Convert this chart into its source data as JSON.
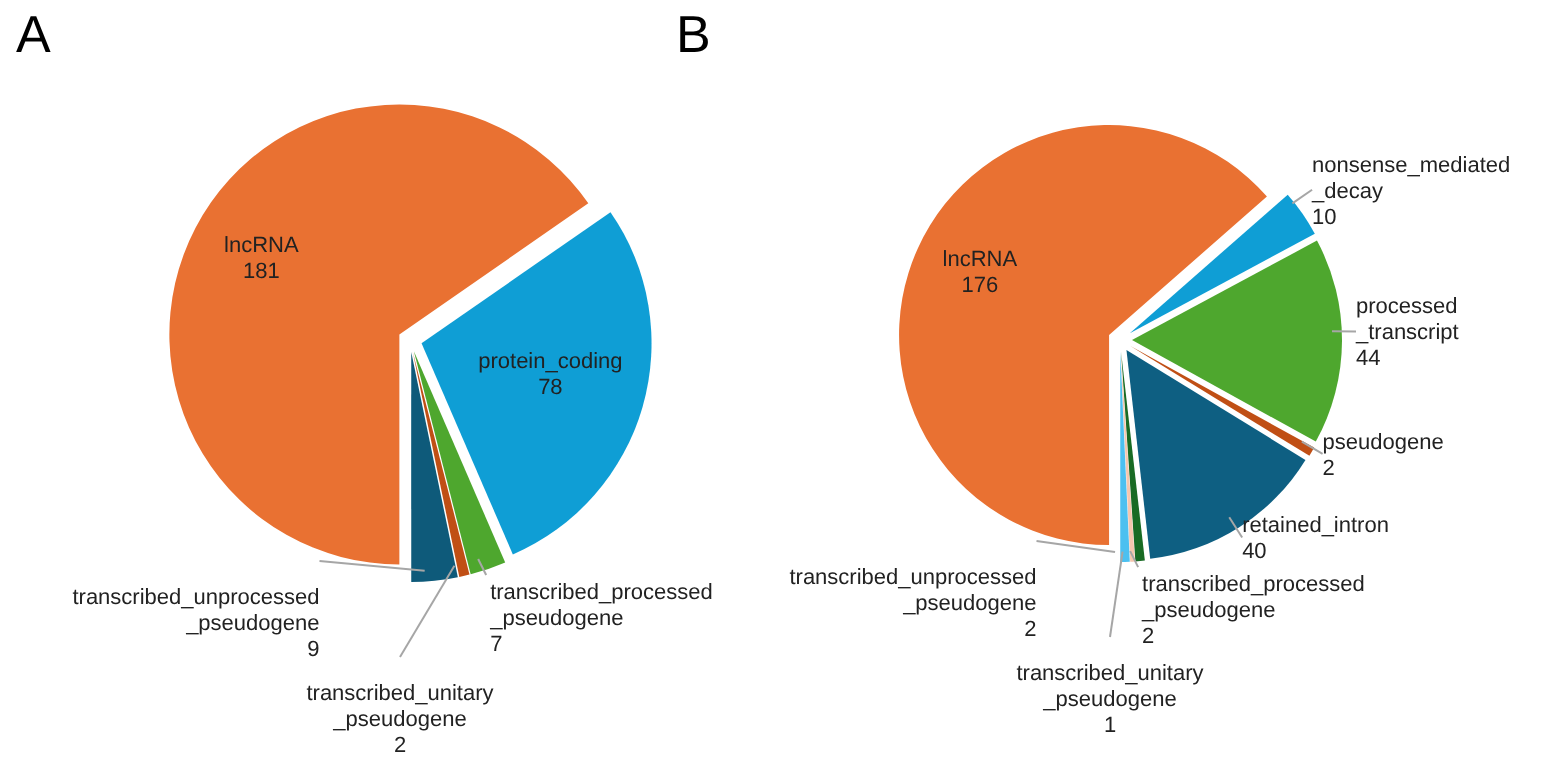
{
  "chart_data": [
    {
      "type": "pie",
      "title": "A",
      "categories": [
        "lncRNA",
        "protein_coding",
        "transcribed_processed_pseudogene",
        "transcribed_unitary_pseudogene",
        "transcribed_unprocessed_pseudogene"
      ],
      "values": [
        181,
        78,
        7,
        2,
        9
      ],
      "colors": [
        "#e97132",
        "#0f9ed5",
        "#4ea72e",
        "#c04f15",
        "#0e5a7a"
      ],
      "data_labels": true,
      "legend": false
    },
    {
      "type": "pie",
      "title": "B",
      "categories": [
        "lncRNA",
        "nonsense_mediated_decay",
        "processed_transcript",
        "pseudogene",
        "retained_intron",
        "transcribed_processed_pseudogene",
        "transcribed_unitary_pseudogene",
        "transcribed_unprocessed_pseudogene"
      ],
      "values": [
        176,
        10,
        44,
        2,
        40,
        2,
        1,
        2
      ],
      "colors": [
        "#e97132",
        "#0f9ed5",
        "#4ea72e",
        "#c04f15",
        "#0e5f82",
        "#196b24",
        "#f6c6ad",
        "#4cc0f0"
      ],
      "data_labels": true,
      "legend": false
    }
  ]
}
